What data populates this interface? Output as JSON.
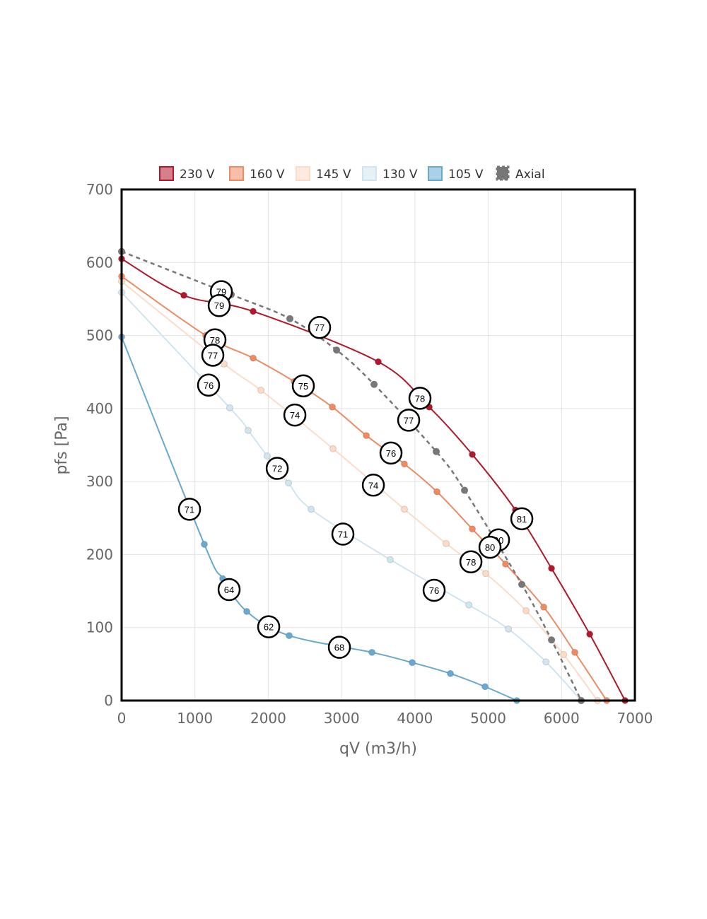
{
  "chart_data": {
    "type": "line",
    "xlabel": "qV (m3/h)",
    "ylabel": "pfs [Pa]",
    "xlim": [
      0,
      7000
    ],
    "ylim": [
      0,
      700
    ],
    "xticks": [
      "0",
      "1000",
      "2000",
      "3000",
      "4000",
      "5000",
      "6000",
      "7000"
    ],
    "yticks": [
      "0",
      "100",
      "200",
      "300",
      "400",
      "500",
      "600",
      "700"
    ],
    "grid": true,
    "legend_position": "top",
    "series": [
      {
        "name": "230 V",
        "color": "#b2182b",
        "dashed": false,
        "x": [
          0,
          849,
          1794,
          3500,
          4195,
          4783,
          5371,
          5863,
          6384,
          6866
        ],
        "y": [
          605,
          555,
          533,
          464,
          402,
          337,
          261,
          181,
          91,
          0
        ]
      },
      {
        "name": "160 V",
        "color": "#ef8a62",
        "dashed": false,
        "x": [
          0,
          1148,
          1794,
          2353,
          2874,
          3337,
          3857,
          4301,
          4783,
          5236,
          5757,
          6181,
          6615
        ],
        "y": [
          581,
          500,
          469,
          437,
          402,
          363,
          324,
          286,
          235,
          187,
          128,
          66,
          0
        ]
      },
      {
        "name": "145 V",
        "color": "#fddbc7",
        "dashed": false,
        "x": [
          0,
          1398,
          1900,
          2883,
          3857,
          4426,
          4966,
          5516,
          6027,
          6490
        ],
        "y": [
          574,
          461,
          425,
          345,
          262,
          215,
          174,
          123,
          63,
          0
        ]
      },
      {
        "name": "130 V",
        "color": "#d1e5f0",
        "dashed": false,
        "x": [
          0,
          1475,
          1726,
          1986,
          2276,
          2584,
          3664,
          4735,
          5275,
          5786,
          6268
        ],
        "y": [
          559,
          401,
          370,
          335,
          298,
          262,
          193,
          131,
          98,
          53,
          0
        ]
      },
      {
        "name": "105 V",
        "color": "#67a9cf",
        "dashed": false,
        "x": [
          0,
          1128,
          1379,
          1707,
          2285,
          3414,
          3963,
          4484,
          4957,
          5390
        ],
        "y": [
          498,
          214,
          167,
          122,
          89,
          66,
          52,
          37,
          19,
          0
        ]
      },
      {
        "name": "Axial",
        "color": "#777777",
        "dashed": true,
        "x": [
          0,
          1495,
          2295,
          2932,
          3443,
          4291,
          4677,
          5458,
          5863,
          6268
        ],
        "y": [
          615,
          556,
          523,
          480,
          433,
          341,
          288,
          159,
          83,
          0
        ]
      }
    ],
    "annotations": [
      {
        "text": "79",
        "x": 1360,
        "y": 560
      },
      {
        "text": "79",
        "x": 1331,
        "y": 541
      },
      {
        "text": "78",
        "x": 1273,
        "y": 494
      },
      {
        "text": "77",
        "x": 1244,
        "y": 473
      },
      {
        "text": "76",
        "x": 1186,
        "y": 432
      },
      {
        "text": "77",
        "x": 2700,
        "y": 511
      },
      {
        "text": "75",
        "x": 2478,
        "y": 431
      },
      {
        "text": "74",
        "x": 2363,
        "y": 391
      },
      {
        "text": "72",
        "x": 2122,
        "y": 318
      },
      {
        "text": "78",
        "x": 4069,
        "y": 414
      },
      {
        "text": "77",
        "x": 3915,
        "y": 384
      },
      {
        "text": "76",
        "x": 3674,
        "y": 339
      },
      {
        "text": "74",
        "x": 3433,
        "y": 295
      },
      {
        "text": "71",
        "x": 926,
        "y": 262
      },
      {
        "text": "71",
        "x": 3018,
        "y": 228
      },
      {
        "text": "81",
        "x": 5458,
        "y": 249
      },
      {
        "text": "80",
        "x": 5140,
        "y": 220
      },
      {
        "text": "80",
        "x": 5024,
        "y": 210
      },
      {
        "text": "78",
        "x": 4764,
        "y": 190
      },
      {
        "text": "76",
        "x": 4262,
        "y": 151
      },
      {
        "text": "64",
        "x": 1466,
        "y": 152
      },
      {
        "text": "62",
        "x": 2006,
        "y": 101
      },
      {
        "text": "68",
        "x": 2970,
        "y": 73
      }
    ]
  }
}
